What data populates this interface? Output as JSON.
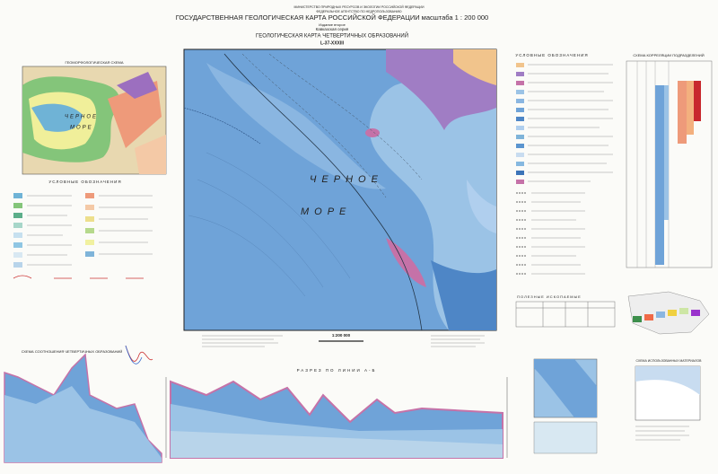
{
  "header": {
    "ministry": "МИНИСТЕРСТВО ПРИРОДНЫХ РЕСУРСОВ И ЭКОЛОГИИ РОССИЙСКОЙ ФЕДЕРАЦИИ",
    "agency": "ФЕДЕРАЛЬНОЕ АГЕНТСТВО ПО НЕДРОПОЛЬЗОВАНИЮ",
    "title": "ГОСУДАРСТВЕННАЯ ГЕОЛОГИЧЕСКАЯ КАРТА РОССИЙСКОЙ ФЕДЕРАЦИИ масштаба 1 : 200 000",
    "edition": "Издание второе",
    "series": "Кавказская серия",
    "map_title": "ГЕОЛОГИЧЕСКАЯ КАРТА ЧЕТВЕРТИЧНЫХ ОБРАЗОВАНИЙ",
    "sheet": "L-37-XXXIII"
  },
  "inset": {
    "title": "ГЕОМОРФОЛОГИЧЕСКАЯ СХЕМА",
    "sea_word1": "ЧЕРНОЕ",
    "sea_word2": "МОРЕ",
    "legend_title": "УСЛОВНЫЕ ОБОЗНАЧЕНИЯ"
  },
  "main_map": {
    "sea_word1": "ЧЕРНОЕ",
    "sea_word2": "МОРЕ",
    "scale": "1:200 000"
  },
  "legend": {
    "title": "УСЛОВНЫЕ ОБОЗНАЧЕНИЯ"
  },
  "minerals": {
    "title": "ПОЛЕЗНЫЕ ИСКОПАЕМЫЕ"
  },
  "correlation": {
    "title": "СХЕМА КОРРЕЛЯЦИИ ПОДРАЗДЕЛЕНИЙ"
  },
  "relations": {
    "title": "СХЕМА СООТНОШЕНИЯ ЧЕТВЕРТИЧНЫХ ОБРАЗОВАНИЙ"
  },
  "section": {
    "title": "РАЗРЕЗ ПО ЛИНИИ А-Б"
  },
  "materials": {
    "title": "СХЕМА ИСПОЛЬЗОВАННЫХ МАТЕРИАЛОВ"
  }
}
